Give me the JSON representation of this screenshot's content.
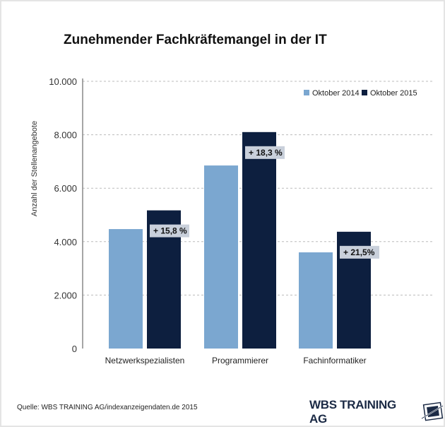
{
  "title": "Zunehmender Fachkräftemangel in der IT",
  "source": "Quelle: WBS TRAINING AG/indexanzeigendaten.de 2015",
  "logo_text": "WBS TRAINING AG",
  "colors": {
    "series_2014": "#7ba7d0",
    "series_2015": "#0d1f3f",
    "annotation_bg": "#c9d0db",
    "grid": "#bbbbbb"
  },
  "chart_data": {
    "type": "bar",
    "title": "Zunehmender Fachkräftemangel in der IT",
    "xlabel": "",
    "ylabel": "Anzahl der Stellenangebote",
    "ylim": [
      0,
      10000
    ],
    "yticks": [
      0,
      2000,
      4000,
      6000,
      8000,
      10000
    ],
    "ytick_labels": [
      "0",
      "2.000",
      "4.000",
      "6.000",
      "8.000",
      "10.000"
    ],
    "grid": true,
    "legend_position": "top-right",
    "categories": [
      "Netzwerkspezialisten",
      "Programmierer",
      "Fachinformatiker"
    ],
    "series": [
      {
        "name": "Oktober 2014",
        "values": [
          4470,
          6850,
          3600
        ]
      },
      {
        "name": "Oktober 2015",
        "values": [
          5170,
          8100,
          4370
        ]
      }
    ],
    "annotations": [
      "+ 15,8 %",
      "+ 18,3 %",
      "+ 21,5%"
    ]
  }
}
